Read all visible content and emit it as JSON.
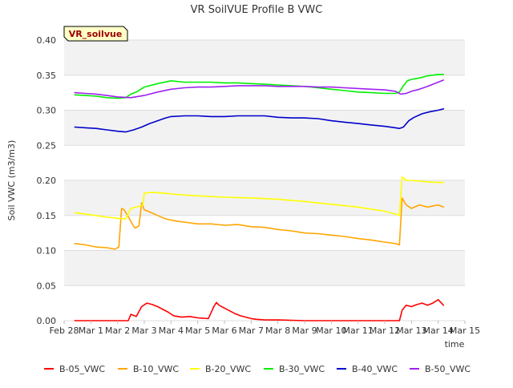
{
  "chart_data": {
    "type": "line",
    "title": "VR SoilVUE Profile B VWC",
    "xlabel": "time",
    "ylabel": "Soil VWC (m3/m3)",
    "station_label": "VR_soilvue",
    "x_unit": "days since Feb 28",
    "xlim": [
      0,
      15
    ],
    "ylim": [
      0,
      0.4
    ],
    "y_ticks": [
      0.0,
      0.05,
      0.1,
      0.15,
      0.2,
      0.25,
      0.3,
      0.35,
      0.4
    ],
    "y_tick_labels": [
      "0.00",
      "0.05",
      "0.10",
      "0.15",
      "0.20",
      "0.25",
      "0.30",
      "0.35",
      "0.40"
    ],
    "x_ticks": [
      0,
      1,
      2,
      3,
      4,
      5,
      6,
      7,
      8,
      9,
      10,
      11,
      12,
      13,
      14,
      15
    ],
    "x_tick_labels": [
      "Feb 28",
      "Mar 1",
      "Mar 2",
      "Mar 3",
      "Mar 4",
      "Mar 5",
      "Mar 6",
      "Mar 7",
      "Mar 8",
      "Mar 9",
      "Mar 10",
      "Mar 11",
      "Mar 12",
      "Mar 13",
      "Mar 14",
      "Mar 15"
    ],
    "grid": true,
    "legend_position": "bottom",
    "series": [
      {
        "name": "B-05_VWC",
        "color": "#ff0000",
        "x": [
          0.4,
          1.0,
          2.0,
          2.4,
          2.5,
          2.7,
          2.9,
          3.1,
          3.3,
          3.5,
          3.7,
          3.9,
          4.1,
          4.4,
          4.7,
          5.0,
          5.4,
          5.6,
          5.7,
          5.8,
          6.0,
          6.2,
          6.4,
          6.6,
          6.8,
          7.0,
          7.2,
          7.5,
          8.0,
          9.0,
          10.0,
          11.0,
          12.0,
          12.55,
          12.65,
          12.8,
          13.0,
          13.2,
          13.4,
          13.6,
          13.8,
          14.0,
          14.2
        ],
        "values": [
          0.0,
          0.0,
          0.0,
          0.0,
          0.009,
          0.006,
          0.02,
          0.025,
          0.023,
          0.02,
          0.016,
          0.012,
          0.007,
          0.005,
          0.006,
          0.004,
          0.003,
          0.02,
          0.026,
          0.022,
          0.018,
          0.014,
          0.01,
          0.007,
          0.005,
          0.003,
          0.002,
          0.001,
          0.001,
          0.0,
          0.0,
          0.0,
          0.0,
          0.0,
          0.015,
          0.022,
          0.02,
          0.023,
          0.025,
          0.022,
          0.025,
          0.03,
          0.022
        ]
      },
      {
        "name": "B-10_VWC",
        "color": "#ffa500",
        "x": [
          0.4,
          0.8,
          1.2,
          1.6,
          1.9,
          2.05,
          2.15,
          2.25,
          2.45,
          2.55,
          2.65,
          2.8,
          2.9,
          3.0,
          3.2,
          3.5,
          3.8,
          4.2,
          4.6,
          5.0,
          5.5,
          6.0,
          6.5,
          7.0,
          7.5,
          8.0,
          8.5,
          9.0,
          9.5,
          10.0,
          10.5,
          11.0,
          11.5,
          12.0,
          12.4,
          12.55,
          12.65,
          12.8,
          13.0,
          13.3,
          13.6,
          14.0,
          14.2
        ],
        "values": [
          0.11,
          0.108,
          0.105,
          0.104,
          0.102,
          0.105,
          0.16,
          0.158,
          0.145,
          0.138,
          0.132,
          0.135,
          0.168,
          0.158,
          0.155,
          0.15,
          0.145,
          0.142,
          0.14,
          0.138,
          0.138,
          0.136,
          0.137,
          0.134,
          0.133,
          0.13,
          0.128,
          0.125,
          0.124,
          0.122,
          0.12,
          0.117,
          0.115,
          0.112,
          0.11,
          0.108,
          0.175,
          0.165,
          0.16,
          0.165,
          0.162,
          0.165,
          0.162
        ]
      },
      {
        "name": "B-20_VWC",
        "color": "#ffff00",
        "x": [
          0.4,
          1.0,
          1.5,
          2.0,
          2.3,
          2.5,
          2.8,
          2.95,
          3.0,
          3.3,
          3.7,
          4.2,
          5.0,
          6.0,
          7.0,
          8.0,
          9.0,
          10.0,
          11.0,
          12.0,
          12.4,
          12.55,
          12.65,
          12.8,
          13.0,
          13.3,
          13.6,
          14.0,
          14.2
        ],
        "values": [
          0.154,
          0.151,
          0.148,
          0.146,
          0.145,
          0.16,
          0.163,
          0.165,
          0.182,
          0.183,
          0.182,
          0.18,
          0.178,
          0.176,
          0.175,
          0.173,
          0.17,
          0.166,
          0.162,
          0.156,
          0.152,
          0.15,
          0.205,
          0.2,
          0.2,
          0.199,
          0.198,
          0.197,
          0.197
        ]
      },
      {
        "name": "B-30_VWC",
        "color": "#00ee00",
        "x": [
          0.4,
          0.8,
          1.2,
          1.6,
          2.0,
          2.3,
          2.5,
          2.7,
          3.0,
          3.5,
          4.0,
          4.5,
          5.0,
          5.5,
          6.0,
          6.5,
          7.0,
          7.5,
          8.0,
          8.5,
          9.0,
          9.5,
          10.0,
          10.5,
          11.0,
          11.5,
          12.0,
          12.4,
          12.55,
          12.7,
          12.85,
          13.0,
          13.3,
          13.6,
          14.0,
          14.2
        ],
        "values": [
          0.322,
          0.321,
          0.32,
          0.318,
          0.317,
          0.318,
          0.323,
          0.326,
          0.333,
          0.338,
          0.342,
          0.34,
          0.34,
          0.34,
          0.339,
          0.339,
          0.338,
          0.337,
          0.336,
          0.335,
          0.334,
          0.332,
          0.33,
          0.328,
          0.326,
          0.325,
          0.324,
          0.324,
          0.326,
          0.335,
          0.342,
          0.344,
          0.346,
          0.349,
          0.351,
          0.351
        ]
      },
      {
        "name": "B-40_VWC",
        "color": "#0000cc",
        "x": [
          0.4,
          0.8,
          1.2,
          1.6,
          2.0,
          2.3,
          2.6,
          2.9,
          3.2,
          3.5,
          3.8,
          4.0,
          4.5,
          5.0,
          5.5,
          6.0,
          6.5,
          7.0,
          7.5,
          8.0,
          8.5,
          9.0,
          9.5,
          10.0,
          10.5,
          11.0,
          11.5,
          12.0,
          12.4,
          12.55,
          12.7,
          12.9,
          13.1,
          13.4,
          13.7,
          14.0,
          14.2
        ],
        "values": [
          0.276,
          0.275,
          0.274,
          0.272,
          0.27,
          0.269,
          0.272,
          0.276,
          0.281,
          0.285,
          0.289,
          0.291,
          0.292,
          0.292,
          0.291,
          0.291,
          0.292,
          0.292,
          0.292,
          0.29,
          0.289,
          0.289,
          0.288,
          0.285,
          0.283,
          0.281,
          0.279,
          0.277,
          0.275,
          0.274,
          0.276,
          0.285,
          0.29,
          0.295,
          0.298,
          0.3,
          0.302
        ]
      },
      {
        "name": "B-50_VWC",
        "color": "#a020f0",
        "x": [
          0.4,
          0.8,
          1.2,
          1.6,
          2.0,
          2.5,
          3.0,
          3.5,
          4.0,
          4.5,
          5.0,
          5.5,
          6.0,
          6.5,
          7.0,
          7.5,
          8.0,
          8.5,
          9.0,
          9.5,
          10.0,
          10.5,
          11.0,
          11.5,
          12.0,
          12.4,
          12.6,
          12.8,
          13.0,
          13.3,
          13.6,
          14.0,
          14.2
        ],
        "values": [
          0.325,
          0.324,
          0.323,
          0.321,
          0.319,
          0.318,
          0.321,
          0.326,
          0.33,
          0.332,
          0.333,
          0.333,
          0.334,
          0.335,
          0.335,
          0.335,
          0.334,
          0.334,
          0.334,
          0.333,
          0.333,
          0.332,
          0.331,
          0.33,
          0.329,
          0.327,
          0.323,
          0.324,
          0.327,
          0.33,
          0.334,
          0.34,
          0.343
        ]
      }
    ]
  }
}
